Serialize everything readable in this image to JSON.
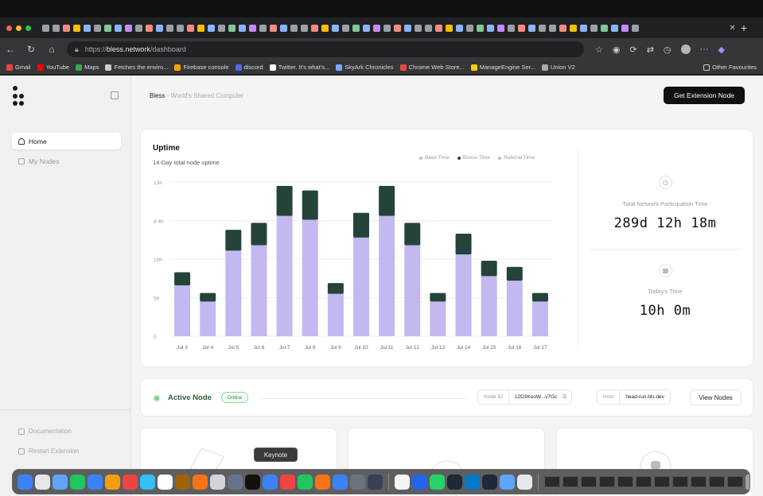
{
  "browser": {
    "url_prefix": "https://",
    "url_host": "bless.network",
    "url_path": "/dashboard",
    "bookmarks": [
      {
        "label": "Gmail",
        "color": "#ea4335"
      },
      {
        "label": "YouTube",
        "color": "#ff0000"
      },
      {
        "label": "Maps",
        "color": "#34a853"
      },
      {
        "label": "Fetches the enviro...",
        "color": "#cccccc"
      },
      {
        "label": "Firebase console",
        "color": "#ffa000"
      },
      {
        "label": "discord",
        "color": "#5865f2"
      },
      {
        "label": "Twitter. It's what's...",
        "color": "#ffffff"
      },
      {
        "label": "SkyArk Chronicles",
        "color": "#7aa7ff"
      },
      {
        "label": "Chrome Web Store...",
        "color": "#e74c3c"
      },
      {
        "label": "ManageEngine Ser...",
        "color": "#ffcc00"
      },
      {
        "label": "Union V2",
        "color": "#aaaaaa"
      }
    ],
    "other_favourites": "Other Favourites"
  },
  "app": {
    "brand": "Bless",
    "tagline": " - World's Shared Computer",
    "cta": "Get Extension Node",
    "nav": {
      "home": "Home",
      "my_nodes": "My Nodes",
      "documentation": "Documentation",
      "restart": "Restart Extension"
    }
  },
  "uptime": {
    "title": "Uptime",
    "subtitle": "14-Day total node uptime",
    "legend": [
      {
        "name": "Base Time",
        "color": "#c4b8f0"
      },
      {
        "name": "Bonus Time",
        "color": "#24443a"
      },
      {
        "name": "Referral Time",
        "color": "#9ad49d"
      }
    ],
    "total_label": "Total Network Participation Time",
    "total_value": "289d 12h 18m",
    "today_label": "Today's Time",
    "today_value": "10h 0m"
  },
  "chart_data": {
    "type": "bar",
    "stacked": true,
    "categories": [
      "Jul 3",
      "Jul 4",
      "Jul 5",
      "Jul 6",
      "Jul 7",
      "Jul 8",
      "Jul 9",
      "Jul 10",
      "Jul 11",
      "Jul 12",
      "Jul 13",
      "Jul 14",
      "Jul 15",
      "Jul 16",
      "Jul 17"
    ],
    "series": [
      {
        "name": "Base Time",
        "values": [
          6.6,
          4.5,
          11.1,
          11.8,
          15.6,
          15.1,
          5.5,
          12.8,
          15.6,
          11.8,
          4.5,
          10.6,
          7.8,
          7.2,
          4.5
        ]
      },
      {
        "name": "Bonus Time",
        "values": [
          1.7,
          1.1,
          2.7,
          2.9,
          3.9,
          3.8,
          1.4,
          3.2,
          3.9,
          2.9,
          1.1,
          2.7,
          2.0,
          1.8,
          1.1
        ]
      },
      {
        "name": "Referral Time",
        "values": [
          0,
          0,
          0,
          0,
          0,
          0,
          0,
          0,
          0,
          0,
          0,
          0,
          0,
          0,
          0
        ]
      }
    ],
    "y_ticks": [
      "0",
      "5h",
      "10h",
      "d 4h",
      "13h"
    ],
    "ylim": [
      0,
      20
    ],
    "grid": true
  },
  "active_node": {
    "title": "Active Node",
    "status": "Online",
    "node_id_label": "Node ID",
    "node_id": "12D3KooW...v7Gc",
    "host_label": "Host",
    "host": "head-run.bls.dev",
    "view_nodes": "View Nodes"
  },
  "dock": {
    "tooltip": "Keynote",
    "apps": [
      "#3b82f6",
      "#e5e7eb",
      "#60a5fa",
      "#22c55e",
      "#3b82f6",
      "#f59e0b",
      "#ef4444",
      "#38bdf8",
      "#ffffff",
      "#a16207",
      "#f97316",
      "#d1d5db",
      "#64748b",
      "#111111",
      "#3b82f6",
      "#ef4444",
      "#22c55e",
      "#f97316",
      "#3b82f6",
      "#6b7280",
      "#374151",
      "#f3f4f6",
      "#2563eb",
      "#25d366",
      "#1f2937",
      "#007acc",
      "#1f2937",
      "#60a5fa",
      "#e5e7eb"
    ]
  }
}
